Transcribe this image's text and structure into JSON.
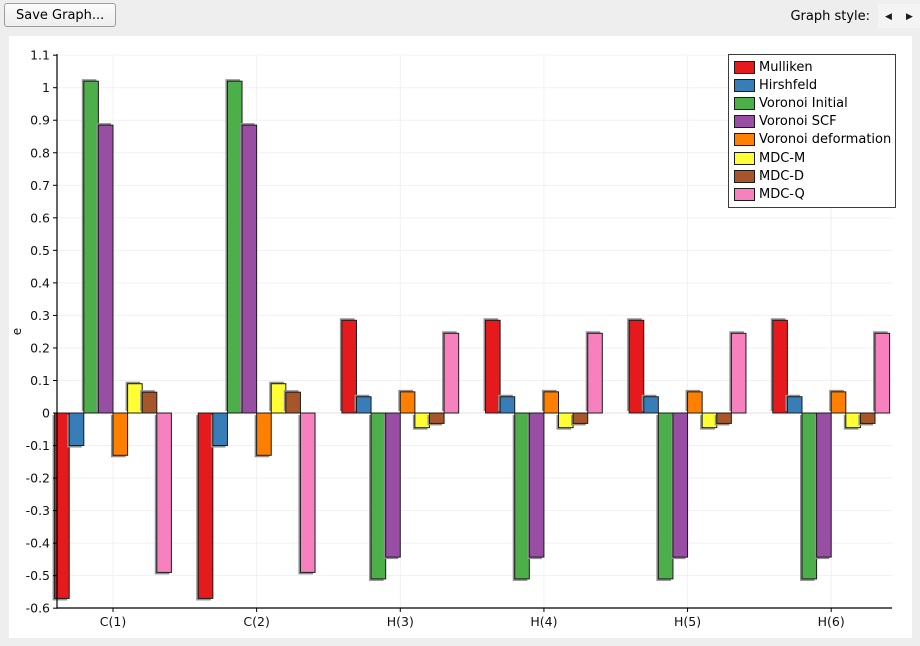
{
  "toolbar": {
    "save_button": "Save Graph...",
    "graph_style_label": "Graph style:",
    "prev_arrow": "◀",
    "next_arrow": "▶"
  },
  "chart_data": {
    "type": "bar",
    "title": "",
    "xlabel": "",
    "ylabel": "e",
    "ylim": [
      -0.6,
      1.1
    ],
    "grid": true,
    "legend_position": "upper-right",
    "y_ticks": [
      "1.1",
      "1",
      "0.9",
      "0.8",
      "0.7",
      "0.6",
      "0.5",
      "0.4",
      "0.3",
      "0.2",
      "0.1",
      "0",
      "-0.1",
      "-0.2",
      "-0.3",
      "-0.4",
      "-0.5",
      "-0.6"
    ],
    "categories": [
      "C(1)",
      "C(2)",
      "H(3)",
      "H(4)",
      "H(5)",
      "H(6)"
    ],
    "series": [
      {
        "name": "Mulliken",
        "color": "#e41a1c",
        "values": [
          -0.57,
          -0.57,
          0.285,
          0.285,
          0.285,
          0.285
        ]
      },
      {
        "name": "Hirshfeld",
        "color": "#377eb8",
        "values": [
          -0.1,
          -0.1,
          0.05,
          0.05,
          0.05,
          0.05
        ]
      },
      {
        "name": "Voronoi Initial",
        "color": "#4daf4a",
        "values": [
          1.02,
          1.02,
          -0.51,
          -0.51,
          -0.51,
          -0.51
        ]
      },
      {
        "name": "Voronoi SCF",
        "color": "#984ea3",
        "values": [
          0.885,
          0.885,
          -0.443,
          -0.443,
          -0.443,
          -0.443
        ]
      },
      {
        "name": "Voronoi deformation",
        "color": "#ff7f00",
        "values": [
          -0.13,
          -0.13,
          0.065,
          0.065,
          0.065,
          0.065
        ]
      },
      {
        "name": "MDC-M",
        "color": "#ffff33",
        "values": [
          0.09,
          0.09,
          -0.045,
          -0.045,
          -0.045,
          -0.045
        ]
      },
      {
        "name": "MDC-D",
        "color": "#a65628",
        "values": [
          0.064,
          0.064,
          -0.032,
          -0.032,
          -0.032,
          -0.032
        ]
      },
      {
        "name": "MDC-Q",
        "color": "#f781bf",
        "values": [
          -0.49,
          -0.49,
          0.245,
          0.245,
          0.245,
          0.245
        ]
      }
    ]
  }
}
